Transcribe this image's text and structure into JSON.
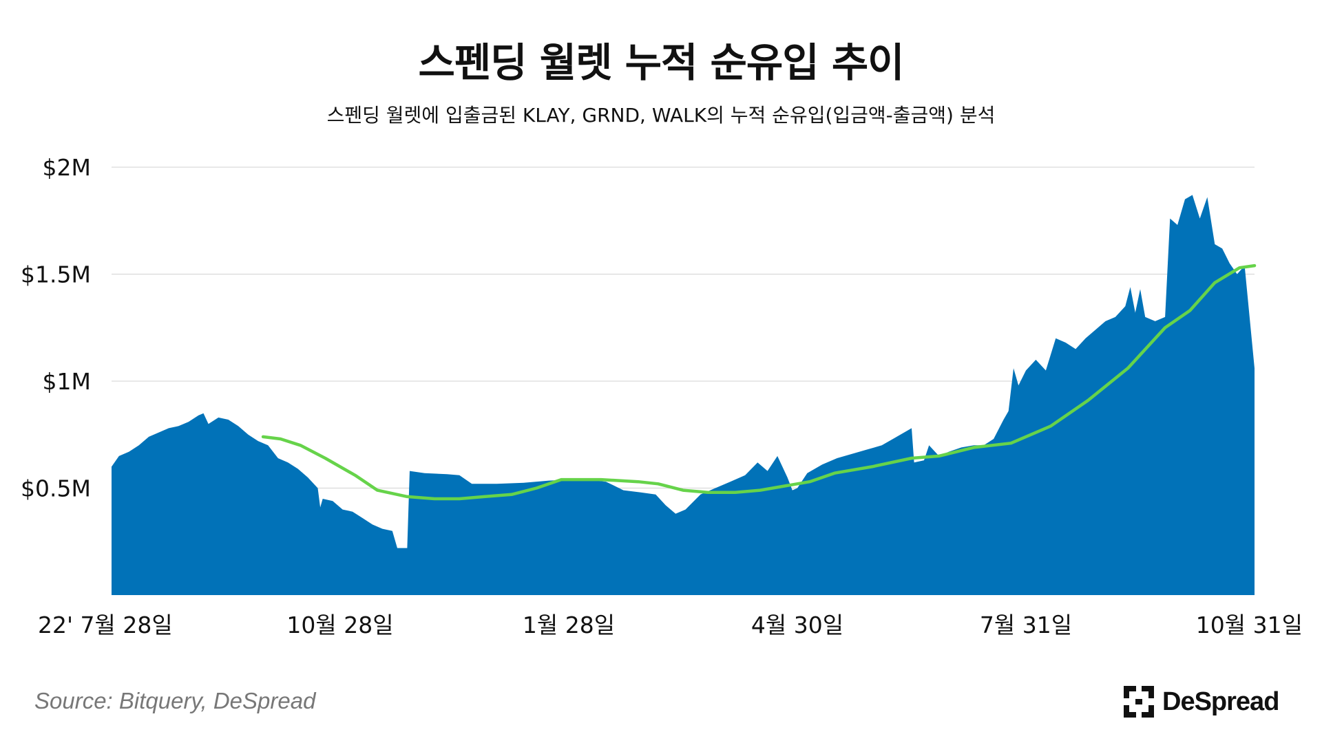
{
  "title": "스펜딩 월렛 누적 순유입 추이",
  "subtitle": "스펜딩 월렛에 입출금된 KLAY, GRND, WALK의 누적 순유입(입금액-출금액) 분석",
  "source": "Source: Bitquery, DeSpread",
  "logo": {
    "text": "DeSpread",
    "icon": "despread-bracket-logo"
  },
  "colors": {
    "area": "#0172B8",
    "line": "#66D34A",
    "grid": "#D9D9D9",
    "axis_text": "#111111",
    "source": "#777777"
  },
  "chart_data": {
    "type": "area",
    "title": "스펜딩 월렛 누적 순유입 추이",
    "xlabel": "",
    "ylabel": "",
    "ylim": [
      0,
      2000000
    ],
    "y_ticks": [
      500000,
      1000000,
      1500000,
      2000000
    ],
    "y_tick_labels": [
      "$0.5M",
      "$1M",
      "$1.5M",
      "$2M"
    ],
    "grid": true,
    "x_range": [
      "2022-07-28",
      "2023-10-31"
    ],
    "x_ticks": [
      "2022-07-28",
      "2022-10-28",
      "2023-01-28",
      "2023-04-30",
      "2023-07-31",
      "2023-10-31"
    ],
    "x_tick_labels": [
      "22' 7월 28일",
      "10월 28일",
      "1월 28일",
      "4월 30일",
      "7월 31일",
      "10월 31일"
    ],
    "series": [
      {
        "style": "area",
        "color": "#0172B8",
        "points": [
          [
            "2022-07-28",
            600000
          ],
          [
            "2022-07-31",
            650000
          ],
          [
            "2022-08-04",
            670000
          ],
          [
            "2022-08-08",
            700000
          ],
          [
            "2022-08-12",
            740000
          ],
          [
            "2022-08-16",
            760000
          ],
          [
            "2022-08-20",
            780000
          ],
          [
            "2022-08-24",
            790000
          ],
          [
            "2022-08-28",
            810000
          ],
          [
            "2022-09-01",
            840000
          ],
          [
            "2022-09-03",
            850000
          ],
          [
            "2022-09-05",
            800000
          ],
          [
            "2022-09-09",
            830000
          ],
          [
            "2022-09-13",
            820000
          ],
          [
            "2022-09-17",
            790000
          ],
          [
            "2022-09-21",
            750000
          ],
          [
            "2022-09-25",
            720000
          ],
          [
            "2022-09-29",
            700000
          ],
          [
            "2022-10-03",
            640000
          ],
          [
            "2022-10-07",
            620000
          ],
          [
            "2022-10-11",
            590000
          ],
          [
            "2022-10-15",
            550000
          ],
          [
            "2022-10-19",
            500000
          ],
          [
            "2022-10-20",
            410000
          ],
          [
            "2022-10-21",
            450000
          ],
          [
            "2022-10-25",
            440000
          ],
          [
            "2022-10-29",
            400000
          ],
          [
            "2022-11-02",
            390000
          ],
          [
            "2022-11-06",
            360000
          ],
          [
            "2022-11-10",
            330000
          ],
          [
            "2022-11-14",
            310000
          ],
          [
            "2022-11-18",
            300000
          ],
          [
            "2022-11-20",
            220000
          ],
          [
            "2022-11-24",
            220000
          ],
          [
            "2022-11-25",
            580000
          ],
          [
            "2022-12-01",
            570000
          ],
          [
            "2022-12-10",
            565000
          ],
          [
            "2022-12-15",
            560000
          ],
          [
            "2022-12-20",
            520000
          ],
          [
            "2022-12-30",
            520000
          ],
          [
            "2023-01-10",
            525000
          ],
          [
            "2023-01-20",
            535000
          ],
          [
            "2023-01-28",
            540000
          ],
          [
            "2023-02-05",
            540000
          ],
          [
            "2023-02-12",
            530000
          ],
          [
            "2023-02-19",
            490000
          ],
          [
            "2023-02-26",
            480000
          ],
          [
            "2023-03-04",
            470000
          ],
          [
            "2023-03-08",
            420000
          ],
          [
            "2023-03-12",
            380000
          ],
          [
            "2023-03-16",
            400000
          ],
          [
            "2023-03-22",
            470000
          ],
          [
            "2023-03-28",
            500000
          ],
          [
            "2023-04-03",
            530000
          ],
          [
            "2023-04-09",
            560000
          ],
          [
            "2023-04-14",
            620000
          ],
          [
            "2023-04-18",
            580000
          ],
          [
            "2023-04-22",
            650000
          ],
          [
            "2023-04-26",
            550000
          ],
          [
            "2023-04-28",
            490000
          ],
          [
            "2023-04-30",
            500000
          ],
          [
            "2023-05-04",
            570000
          ],
          [
            "2023-05-10",
            610000
          ],
          [
            "2023-05-16",
            640000
          ],
          [
            "2023-05-22",
            660000
          ],
          [
            "2023-05-28",
            680000
          ],
          [
            "2023-06-03",
            700000
          ],
          [
            "2023-06-09",
            740000
          ],
          [
            "2023-06-15",
            780000
          ],
          [
            "2023-06-16",
            620000
          ],
          [
            "2023-06-20",
            630000
          ],
          [
            "2023-06-22",
            700000
          ],
          [
            "2023-06-26",
            650000
          ],
          [
            "2023-06-30",
            670000
          ],
          [
            "2023-07-05",
            690000
          ],
          [
            "2023-07-10",
            700000
          ],
          [
            "2023-07-14",
            700000
          ],
          [
            "2023-07-18",
            730000
          ],
          [
            "2023-07-22",
            820000
          ],
          [
            "2023-07-24",
            860000
          ],
          [
            "2023-07-26",
            1060000
          ],
          [
            "2023-07-28",
            980000
          ],
          [
            "2023-07-31",
            1050000
          ],
          [
            "2023-08-04",
            1100000
          ],
          [
            "2023-08-08",
            1050000
          ],
          [
            "2023-08-12",
            1200000
          ],
          [
            "2023-08-16",
            1180000
          ],
          [
            "2023-08-20",
            1150000
          ],
          [
            "2023-08-24",
            1200000
          ],
          [
            "2023-08-28",
            1240000
          ],
          [
            "2023-09-01",
            1280000
          ],
          [
            "2023-09-05",
            1300000
          ],
          [
            "2023-09-09",
            1350000
          ],
          [
            "2023-09-11",
            1440000
          ],
          [
            "2023-09-13",
            1320000
          ],
          [
            "2023-09-15",
            1430000
          ],
          [
            "2023-09-17",
            1300000
          ],
          [
            "2023-09-21",
            1280000
          ],
          [
            "2023-09-25",
            1300000
          ],
          [
            "2023-09-27",
            1760000
          ],
          [
            "2023-09-30",
            1730000
          ],
          [
            "2023-10-03",
            1850000
          ],
          [
            "2023-10-06",
            1870000
          ],
          [
            "2023-10-09",
            1760000
          ],
          [
            "2023-10-12",
            1860000
          ],
          [
            "2023-10-15",
            1640000
          ],
          [
            "2023-10-18",
            1620000
          ],
          [
            "2023-10-21",
            1550000
          ],
          [
            "2023-10-24",
            1500000
          ],
          [
            "2023-10-27",
            1540000
          ],
          [
            "2023-10-31",
            1060000
          ]
        ]
      },
      {
        "style": "line",
        "color": "#66D34A",
        "points": [
          [
            "2022-09-27",
            740000
          ],
          [
            "2022-10-04",
            730000
          ],
          [
            "2022-10-12",
            700000
          ],
          [
            "2022-10-22",
            640000
          ],
          [
            "2022-11-03",
            560000
          ],
          [
            "2022-11-12",
            490000
          ],
          [
            "2022-11-24",
            460000
          ],
          [
            "2022-12-05",
            450000
          ],
          [
            "2022-12-15",
            450000
          ],
          [
            "2022-12-25",
            460000
          ],
          [
            "2023-01-05",
            470000
          ],
          [
            "2023-01-15",
            500000
          ],
          [
            "2023-01-25",
            540000
          ],
          [
            "2023-02-10",
            540000
          ],
          [
            "2023-02-25",
            530000
          ],
          [
            "2023-03-05",
            520000
          ],
          [
            "2023-03-15",
            490000
          ],
          [
            "2023-03-25",
            480000
          ],
          [
            "2023-04-05",
            480000
          ],
          [
            "2023-04-15",
            490000
          ],
          [
            "2023-04-25",
            510000
          ],
          [
            "2023-05-05",
            530000
          ],
          [
            "2023-05-15",
            570000
          ],
          [
            "2023-05-30",
            600000
          ],
          [
            "2023-06-15",
            640000
          ],
          [
            "2023-06-26",
            650000
          ],
          [
            "2023-07-10",
            690000
          ],
          [
            "2023-07-25",
            710000
          ],
          [
            "2023-08-10",
            790000
          ],
          [
            "2023-08-25",
            910000
          ],
          [
            "2023-09-10",
            1060000
          ],
          [
            "2023-09-25",
            1250000
          ],
          [
            "2023-10-05",
            1330000
          ],
          [
            "2023-10-15",
            1460000
          ],
          [
            "2023-10-25",
            1530000
          ],
          [
            "2023-10-31",
            1540000
          ]
        ]
      }
    ]
  }
}
